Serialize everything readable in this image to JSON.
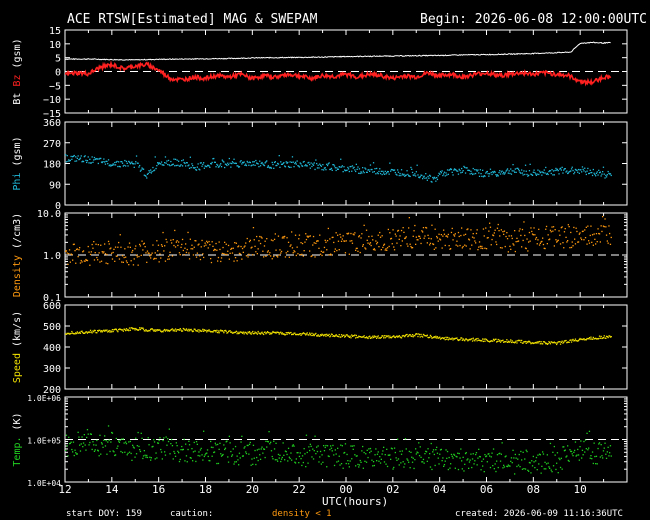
{
  "header": {
    "title": "ACE RTSW[Estimated] MAG & SWEPAM",
    "begin": "Begin: 2026-06-08 12:00:00UTC"
  },
  "footer": {
    "start_doy": "start DOY: 159",
    "caution": "caution:",
    "density_note": "density < 1",
    "created": "created: 2026-06-09 11:16:36UTC"
  },
  "colors": {
    "bt": "#ffffff",
    "bz": "#ff2020",
    "phi": "#20b8d8",
    "density": "#ff9a10",
    "speed": "#f0e000",
    "temp": "#20d020",
    "axis": "#ffffff",
    "dash": "#ffffff"
  },
  "chart_data": {
    "type": "line",
    "xlabel": "UTC(hours)",
    "x_ticks": [
      "12",
      "14",
      "16",
      "18",
      "20",
      "22",
      "00",
      "02",
      "04",
      "06",
      "08",
      "10"
    ],
    "x_range_hours": [
      0,
      24
    ],
    "panels": [
      {
        "id": "mag",
        "ylabel_parts": [
          {
            "text": "Bt",
            "color": "#ffffff"
          },
          {
            "text": "Bz",
            "color": "#ff2020"
          },
          {
            "text": "(gsm)",
            "color": "#ffffff"
          }
        ],
        "scale": "linear",
        "ylim": [
          -15,
          15
        ],
        "ticks": [
          "15",
          "10",
          "5",
          "0",
          "−5",
          "−10",
          "−15"
        ],
        "tick_values": [
          15,
          10,
          5,
          0,
          -5,
          -10,
          -15
        ],
        "dashed_at": 0,
        "series": [
          {
            "name": "Bt",
            "color": "#ffffff",
            "x": [
              0,
              1,
              2,
              3,
              4,
              5,
              6,
              7,
              8,
              9,
              10,
              11,
              12,
              13,
              14,
              15,
              16,
              17,
              18,
              19,
              20,
              21,
              21.6,
              22,
              22.5,
              23,
              23.3
            ],
            "values": [
              4.5,
              4.5,
              4.3,
              4.2,
              4.4,
              4.5,
              4.6,
              4.7,
              4.9,
              5.0,
              5.1,
              5.2,
              5.4,
              5.5,
              5.6,
              5.7,
              5.8,
              6.0,
              6.1,
              6.3,
              6.5,
              6.8,
              7.0,
              10.2,
              10.5,
              10.3,
              10.4
            ]
          },
          {
            "name": "Bz",
            "color": "#ff2020",
            "x": [
              0,
              0.5,
              1,
              1.5,
              2,
              2.5,
              3,
              3.5,
              4,
              4.5,
              5,
              5.5,
              6,
              6.5,
              7,
              7.5,
              8,
              8.5,
              9,
              9.5,
              10,
              10.5,
              11,
              11.5,
              12,
              12.5,
              13,
              13.5,
              14,
              14.5,
              15,
              15.5,
              16,
              16.5,
              17,
              17.5,
              18,
              18.5,
              19,
              19.5,
              20,
              20.5,
              21,
              21.5,
              22,
              22.5,
              23,
              23.3
            ],
            "values": [
              -1.0,
              -0.5,
              -0.8,
              1.5,
              2.5,
              1.0,
              2.0,
              2.5,
              0.5,
              -2.5,
              -3.0,
              -2.0,
              -2.5,
              -1.5,
              -2.0,
              -1.0,
              -2.5,
              -1.5,
              -2.0,
              -1.0,
              -1.5,
              -2.5,
              -1.5,
              -1.8,
              -1.0,
              -2.0,
              -1.0,
              -1.5,
              -2.5,
              -1.5,
              -2.0,
              -0.5,
              -1.5,
              -1.0,
              -2.0,
              -1.0,
              -0.5,
              -1.5,
              -1.0,
              -0.5,
              -1.0,
              -0.5,
              -1.0,
              -1.5,
              -3.5,
              -4.0,
              -2.0,
              -2.0
            ]
          }
        ]
      },
      {
        "id": "phi",
        "ylabel_parts": [
          {
            "text": "Phi",
            "color": "#20b8d8"
          },
          {
            "text": "(gsm)",
            "color": "#ffffff"
          }
        ],
        "scale": "linear",
        "ylim": [
          0,
          360
        ],
        "ticks": [
          "360",
          "270",
          "180",
          "90",
          "0"
        ],
        "tick_values": [
          360,
          270,
          180,
          90,
          0
        ],
        "series": [
          {
            "name": "Phi",
            "color": "#20b8d8",
            "x": [
              0,
              1,
              1.5,
              2,
              3,
              3.5,
              4,
              5,
              5.5,
              6,
              7,
              8,
              9,
              10,
              11,
              12,
              13,
              14,
              15,
              15.8,
              16,
              17,
              17.5,
              18,
              19,
              20,
              21,
              22,
              23,
              23.3
            ],
            "values": [
              205,
              200,
              190,
              185,
              180,
              130,
              190,
              185,
              165,
              175,
              180,
              185,
              175,
              180,
              165,
              160,
              150,
              145,
              140,
              110,
              140,
              155,
              145,
              135,
              150,
              140,
              150,
              155,
              135,
              135
            ]
          }
        ]
      },
      {
        "id": "density",
        "ylabel_parts": [
          {
            "text": "Density",
            "color": "#ff9a10"
          },
          {
            "text": "(/cm3)",
            "color": "#ffffff"
          }
        ],
        "scale": "log",
        "ylim": [
          0.1,
          10
        ],
        "ticks": [
          "10.0",
          "1.0",
          "0.1"
        ],
        "tick_values": [
          10,
          1,
          0.1
        ],
        "dashed_at": 1,
        "series": [
          {
            "name": "Density",
            "color": "#ff9a10",
            "x": [
              0,
              1,
              2,
              3,
              4,
              5,
              6,
              7,
              8,
              9,
              10,
              11,
              12,
              13,
              14,
              15,
              16,
              17,
              18,
              19,
              20,
              21,
              22,
              23,
              23.3
            ],
            "values": [
              1.0,
              1.1,
              1.2,
              1.0,
              1.3,
              1.5,
              1.2,
              1.3,
              1.5,
              1.6,
              1.8,
              1.7,
              2.0,
              2.2,
              2.5,
              2.8,
              2.5,
              2.3,
              2.6,
              2.2,
              2.5,
              2.8,
              2.6,
              3.0,
              3.0
            ]
          }
        ]
      },
      {
        "id": "speed",
        "ylabel_parts": [
          {
            "text": "Speed",
            "color": "#f0e000"
          },
          {
            "text": "(km/s)",
            "color": "#ffffff"
          }
        ],
        "scale": "linear",
        "ylim": [
          200,
          600
        ],
        "ticks": [
          "600",
          "500",
          "400",
          "300",
          "200"
        ],
        "tick_values": [
          600,
          500,
          400,
          300,
          200
        ],
        "series": [
          {
            "name": "Speed",
            "color": "#f0e000",
            "x": [
              0,
              1,
              2,
              3,
              4,
              5,
              6,
              7,
              8,
              9,
              10,
              11,
              12,
              13,
              14,
              15,
              16,
              17,
              18,
              19,
              20,
              21,
              22,
              23,
              23.3
            ],
            "values": [
              470,
              475,
              480,
              490,
              480,
              485,
              480,
              475,
              470,
              470,
              465,
              460,
              455,
              450,
              450,
              460,
              445,
              440,
              435,
              430,
              425,
              420,
              440,
              450,
              450
            ]
          }
        ]
      },
      {
        "id": "temp",
        "ylabel_parts": [
          {
            "text": "Temp.",
            "color": "#20d020"
          },
          {
            "text": "(K)",
            "color": "#ffffff"
          }
        ],
        "scale": "log",
        "ylim": [
          10000,
          1000000
        ],
        "ticks": [
          "1.0E+06",
          "1.0E+05",
          "1.0E+04"
        ],
        "tick_values": [
          1000000,
          100000,
          10000
        ],
        "dashed_at": 100000,
        "series": [
          {
            "name": "Temp",
            "color": "#20d020",
            "x": [
              0,
              1,
              2,
              3,
              4,
              5,
              6,
              7,
              8,
              9,
              10,
              11,
              12,
              13,
              14,
              15,
              16,
              17,
              18,
              19,
              20,
              21,
              22,
              23,
              23.3
            ],
            "values": [
              80000,
              75000,
              70000,
              60000,
              65000,
              58000,
              55000,
              50000,
              48000,
              52000,
              45000,
              42000,
              40000,
              38000,
              35000,
              40000,
              36000,
              34000,
              32000,
              30000,
              28000,
              30000,
              60000,
              45000,
              45000
            ]
          }
        ]
      }
    ]
  }
}
